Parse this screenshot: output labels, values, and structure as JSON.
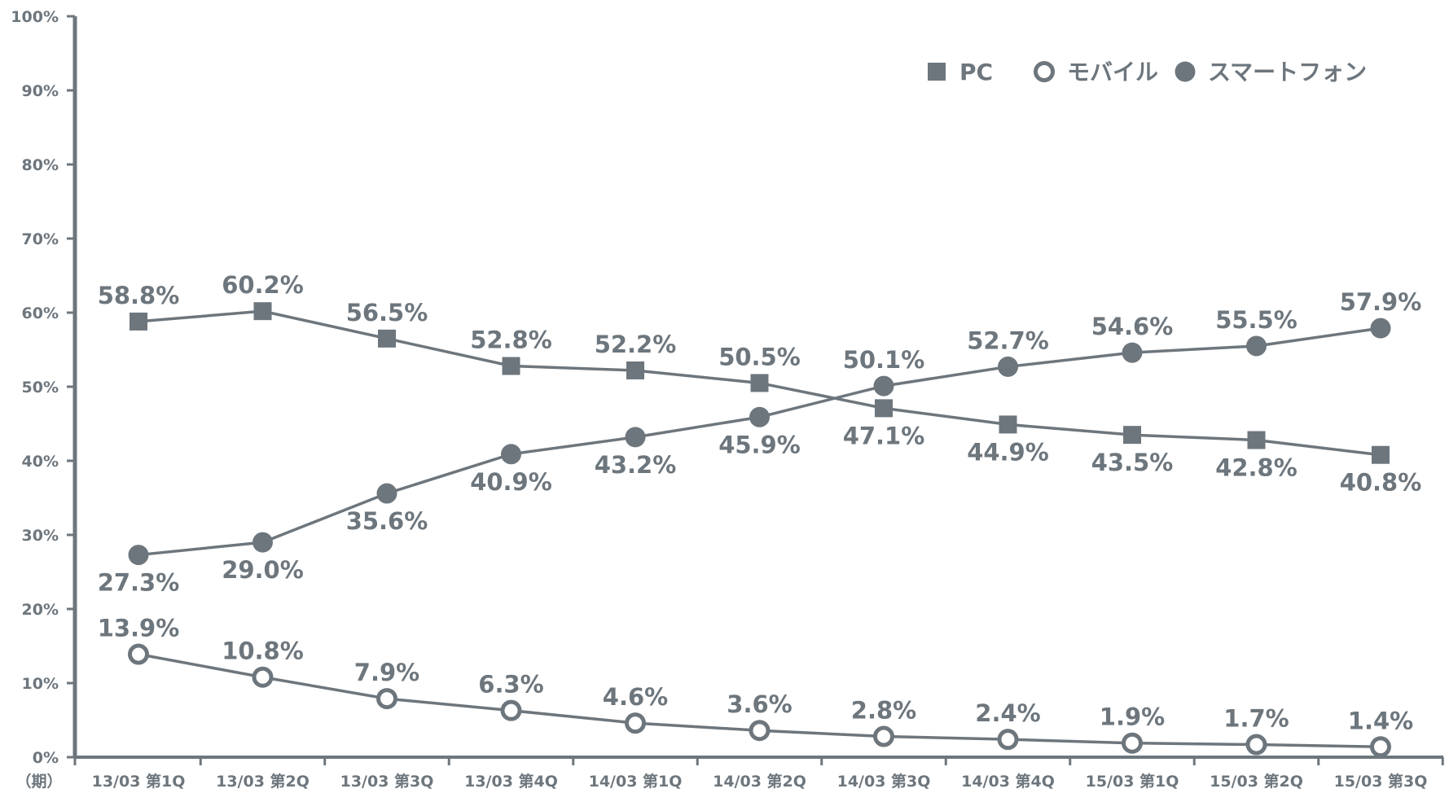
{
  "chart_data": {
    "type": "line",
    "y_unit_label": "（期）",
    "categories": [
      "13/03 第1Q",
      "13/03 第2Q",
      "13/03 第3Q",
      "13/03 第4Q",
      "14/03 第1Q",
      "14/03 第2Q",
      "14/03 第3Q",
      "14/03 第4Q",
      "15/03 第1Q",
      "15/03 第2Q",
      "15/03 第3Q"
    ],
    "yticks": [
      "0%",
      "10%",
      "20%",
      "30%",
      "40%",
      "50%",
      "60%",
      "70%",
      "80%",
      "90%",
      "100%"
    ],
    "ylim": [
      0,
      100
    ],
    "legend_position": "top-right",
    "color": "#6d767d",
    "series": [
      {
        "name": "PC",
        "marker": "square",
        "values": [
          58.8,
          60.2,
          56.5,
          52.8,
          52.2,
          50.5,
          47.1,
          44.9,
          43.5,
          42.8,
          40.8
        ],
        "labels": [
          "58.8%",
          "60.2%",
          "56.5%",
          "52.8%",
          "52.2%",
          "50.5%",
          "47.1%",
          "44.9%",
          "43.5%",
          "42.8%",
          "40.8%"
        ]
      },
      {
        "name": "モバイル",
        "marker": "open-circle",
        "values": [
          13.9,
          10.8,
          7.9,
          6.3,
          4.6,
          3.6,
          2.8,
          2.4,
          1.9,
          1.7,
          1.4
        ],
        "labels": [
          "13.9%",
          "10.8%",
          "7.9%",
          "6.3%",
          "4.6%",
          "3.6%",
          "2.8%",
          "2.4%",
          "1.9%",
          "1.7%",
          "1.4%"
        ]
      },
      {
        "name": "スマートフォン",
        "marker": "filled-circle",
        "values": [
          27.3,
          29.0,
          35.6,
          40.9,
          43.2,
          45.9,
          50.1,
          52.7,
          54.6,
          55.5,
          57.9
        ],
        "labels": [
          "27.3%",
          "29.0%",
          "35.6%",
          "40.9%",
          "43.2%",
          "45.9%",
          "50.1%",
          "52.7%",
          "54.6%",
          "55.5%",
          "57.9%"
        ]
      }
    ]
  }
}
